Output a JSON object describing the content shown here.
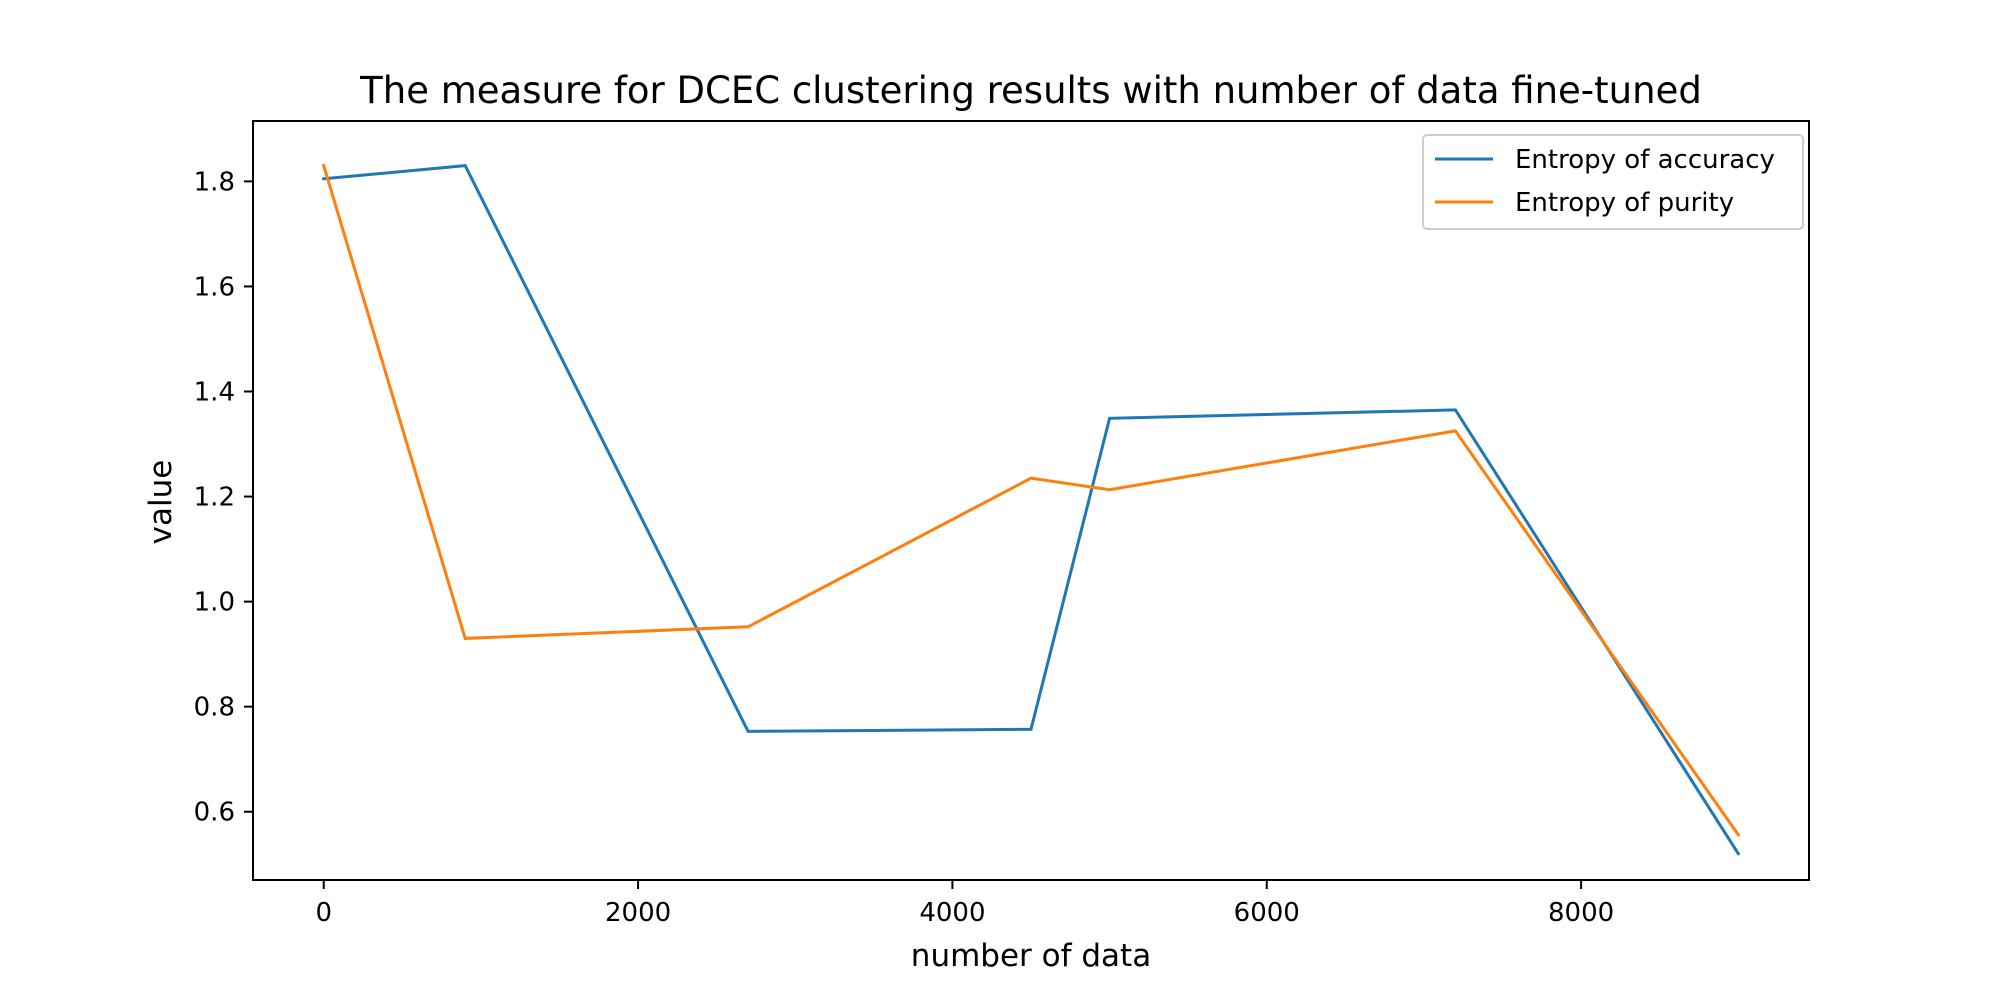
{
  "chart_data": {
    "type": "line",
    "title": "The measure for DCEC clustering results with number of data fine-tuned",
    "xlabel": "number of data",
    "ylabel": "value",
    "xlim": [
      -450,
      9450
    ],
    "ylim": [
      0.47,
      1.915
    ],
    "xticks": [
      0,
      2000,
      4000,
      6000,
      8000
    ],
    "yticks": [
      0.6,
      0.8,
      1.0,
      1.2,
      1.4,
      1.6,
      1.8
    ],
    "grid": false,
    "legend_position": "upper right",
    "series": [
      {
        "name": "Entropy of accuracy",
        "color": "#1f77b4",
        "x": [
          0,
          900,
          2700,
          4500,
          5000,
          7200,
          9000
        ],
        "y": [
          1.805,
          1.83,
          0.753,
          0.757,
          1.349,
          1.365,
          0.52
        ]
      },
      {
        "name": "Entropy of purity",
        "color": "#ff7f0e",
        "x": [
          0,
          900,
          2700,
          4500,
          5000,
          7200,
          9000
        ],
        "y": [
          1.83,
          0.93,
          0.952,
          1.235,
          1.213,
          1.325,
          0.556
        ]
      }
    ]
  }
}
